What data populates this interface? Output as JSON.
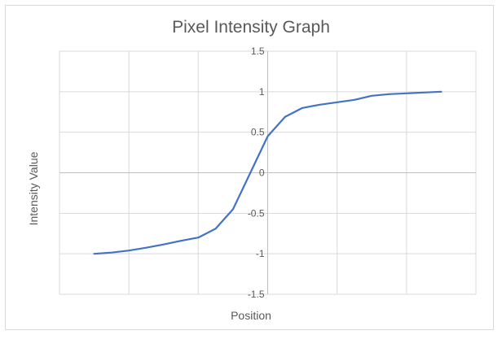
{
  "chart_data": {
    "type": "line",
    "title": "Pixel Intensity Graph",
    "xlabel": "Position",
    "ylabel": "Intensity Value",
    "ylim": [
      -1.5,
      1.5
    ],
    "yticks": [
      "1.5",
      "1",
      "0.5",
      "0",
      "-0.5",
      "-1",
      "-1.5"
    ],
    "x": [
      -10,
      -9,
      -8,
      -7,
      -6,
      -5,
      -4,
      -3,
      -2,
      -1,
      0,
      1,
      2,
      3,
      4,
      5,
      6,
      7,
      8,
      9,
      10
    ],
    "xlim": [
      -12,
      12
    ],
    "grid": true,
    "legend": "none",
    "series": [
      {
        "color": "#4472c4",
        "values": [
          -1.0,
          -0.985,
          -0.96,
          -0.925,
          -0.885,
          -0.84,
          -0.8,
          -0.69,
          -0.45,
          0.0,
          0.45,
          0.69,
          0.8,
          0.84,
          0.87,
          0.9,
          0.95,
          0.97,
          0.98,
          0.99,
          1.0
        ]
      }
    ]
  }
}
